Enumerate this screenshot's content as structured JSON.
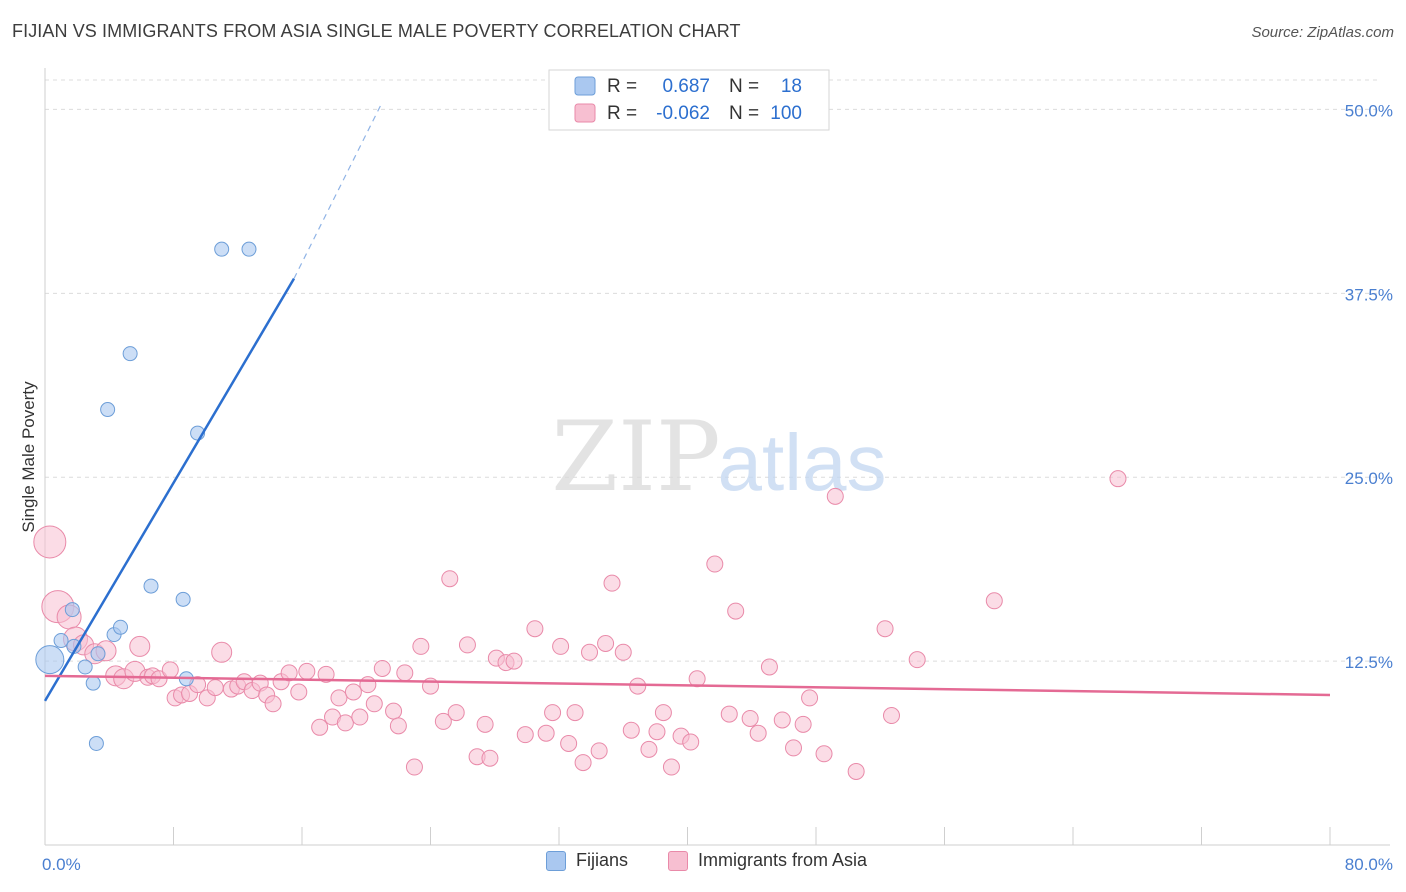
{
  "title": "FIJIAN VS IMMIGRANTS FROM ASIA SINGLE MALE POVERTY CORRELATION CHART",
  "source": "Source: ZipAtlas.com",
  "watermark": {
    "zip": "ZIP",
    "atlas": "atlas"
  },
  "chart_data": {
    "type": "scatter",
    "title": "FIJIAN VS IMMIGRANTS FROM ASIA SINGLE MALE POVERTY CORRELATION CHART",
    "xlabel": "",
    "ylabel": "Single Male Poverty",
    "xlim": [
      0,
      80
    ],
    "ylim": [
      0,
      52
    ],
    "x_tick_labels": [
      {
        "value": 0,
        "label": "0.0%"
      },
      {
        "value": 80,
        "label": "80.0%"
      }
    ],
    "x_minor_ticks": [
      0,
      8,
      16,
      24,
      32,
      40,
      48,
      56,
      64,
      72,
      80
    ],
    "y_ticks": [
      {
        "value": 12.5,
        "label": "12.5%"
      },
      {
        "value": 25.0,
        "label": "25.0%"
      },
      {
        "value": 37.5,
        "label": "37.5%"
      },
      {
        "value": 50.0,
        "label": "50.0%"
      }
    ],
    "grid": true,
    "legend_position": "top-center",
    "colors": {
      "fijians_fill": "#aac8f0",
      "fijians_stroke": "#6d9ed8",
      "fijians_line": "#2c6fcf",
      "asia_fill": "#f7bfd1",
      "asia_stroke": "#e98aa9",
      "asia_line": "#e46a94",
      "r_text": "#2c6fcf",
      "label_text": "#333333"
    },
    "stats": [
      {
        "name": "Fijians",
        "r_label": "R =",
        "r_value": "0.687",
        "n_label": "N =",
        "n_value": "18"
      },
      {
        "name": "Immigrants from Asia",
        "r_label": "R =",
        "r_value": "-0.062",
        "n_label": "N =",
        "n_value": "100"
      }
    ],
    "series": [
      {
        "name": "Fijians",
        "trend": {
          "x0": 0,
          "y0": 9.8,
          "x1": 15.5,
          "y1": 38.5,
          "dash_x1": 21.0,
          "dash_y1": 50.5
        },
        "points": [
          [
            0.3,
            12.6,
            14
          ],
          [
            1.0,
            13.9,
            7
          ],
          [
            1.7,
            16.0,
            7
          ],
          [
            1.8,
            13.5,
            7
          ],
          [
            2.5,
            12.1,
            7
          ],
          [
            3.0,
            11.0,
            7
          ],
          [
            3.2,
            6.9,
            7
          ],
          [
            3.3,
            13.0,
            7
          ],
          [
            4.3,
            14.3,
            7
          ],
          [
            4.7,
            14.8,
            7
          ],
          [
            3.9,
            29.6,
            7
          ],
          [
            5.3,
            33.4,
            7
          ],
          [
            6.6,
            17.6,
            7
          ],
          [
            8.6,
            16.7,
            7
          ],
          [
            9.5,
            28.0,
            7
          ],
          [
            8.8,
            11.3,
            7
          ],
          [
            11.0,
            40.5,
            7
          ],
          [
            12.7,
            40.5,
            7
          ]
        ]
      },
      {
        "name": "Immigrants from Asia",
        "trend": {
          "x0": 0,
          "y0": 11.5,
          "x1": 80,
          "y1": 10.2
        },
        "points": [
          [
            0.3,
            20.6,
            16
          ],
          [
            0.8,
            16.2,
            16
          ],
          [
            1.5,
            15.5,
            12
          ],
          [
            1.9,
            14.0,
            12
          ],
          [
            2.4,
            13.6,
            10
          ],
          [
            3.1,
            13.0,
            10
          ],
          [
            3.8,
            13.2,
            10
          ],
          [
            4.4,
            11.5,
            10
          ],
          [
            4.9,
            11.3,
            10
          ],
          [
            5.6,
            11.8,
            10
          ],
          [
            5.9,
            13.5,
            10
          ],
          [
            6.4,
            11.4,
            8
          ],
          [
            6.7,
            11.5,
            8
          ],
          [
            7.1,
            11.3,
            8
          ],
          [
            7.8,
            11.9,
            8
          ],
          [
            8.1,
            10.0,
            8
          ],
          [
            8.5,
            10.2,
            8
          ],
          [
            9.0,
            10.3,
            8
          ],
          [
            9.5,
            10.9,
            8
          ],
          [
            10.1,
            10.0,
            8
          ],
          [
            10.6,
            10.7,
            8
          ],
          [
            11.0,
            13.1,
            10
          ],
          [
            11.6,
            10.6,
            8
          ],
          [
            12.0,
            10.8,
            8
          ],
          [
            12.4,
            11.1,
            8
          ],
          [
            12.9,
            10.5,
            8
          ],
          [
            13.4,
            11.0,
            8
          ],
          [
            13.8,
            10.2,
            8
          ],
          [
            14.2,
            9.6,
            8
          ],
          [
            14.7,
            11.1,
            8
          ],
          [
            15.2,
            11.7,
            8
          ],
          [
            15.8,
            10.4,
            8
          ],
          [
            16.3,
            11.8,
            8
          ],
          [
            17.1,
            8.0,
            8
          ],
          [
            17.5,
            11.6,
            8
          ],
          [
            17.9,
            8.7,
            8
          ],
          [
            18.3,
            10.0,
            8
          ],
          [
            18.7,
            8.3,
            8
          ],
          [
            19.2,
            10.4,
            8
          ],
          [
            19.6,
            8.7,
            8
          ],
          [
            20.1,
            10.9,
            8
          ],
          [
            20.5,
            9.6,
            8
          ],
          [
            21.0,
            12.0,
            8
          ],
          [
            21.7,
            9.1,
            8
          ],
          [
            22.0,
            8.1,
            8
          ],
          [
            22.4,
            11.7,
            8
          ],
          [
            23.0,
            5.3,
            8
          ],
          [
            23.4,
            13.5,
            8
          ],
          [
            24.0,
            10.8,
            8
          ],
          [
            24.8,
            8.4,
            8
          ],
          [
            25.2,
            18.1,
            8
          ],
          [
            25.6,
            9.0,
            8
          ],
          [
            26.3,
            13.6,
            8
          ],
          [
            26.9,
            6.0,
            8
          ],
          [
            27.4,
            8.2,
            8
          ],
          [
            27.7,
            5.9,
            8
          ],
          [
            28.1,
            12.7,
            8
          ],
          [
            28.7,
            12.4,
            8
          ],
          [
            29.2,
            12.5,
            8
          ],
          [
            29.9,
            7.5,
            8
          ],
          [
            30.5,
            14.7,
            8
          ],
          [
            31.2,
            7.6,
            8
          ],
          [
            31.6,
            9.0,
            8
          ],
          [
            32.1,
            13.5,
            8
          ],
          [
            32.6,
            6.9,
            8
          ],
          [
            33.0,
            9.0,
            8
          ],
          [
            33.5,
            5.6,
            8
          ],
          [
            33.9,
            13.1,
            8
          ],
          [
            34.5,
            6.4,
            8
          ],
          [
            34.9,
            13.7,
            8
          ],
          [
            35.3,
            17.8,
            8
          ],
          [
            36.0,
            13.1,
            8
          ],
          [
            36.5,
            7.8,
            8
          ],
          [
            36.9,
            10.8,
            8
          ],
          [
            37.6,
            6.5,
            8
          ],
          [
            38.1,
            7.7,
            8
          ],
          [
            38.5,
            9.0,
            8
          ],
          [
            39.0,
            5.3,
            8
          ],
          [
            39.6,
            7.4,
            8
          ],
          [
            40.2,
            7.0,
            8
          ],
          [
            40.6,
            11.3,
            8
          ],
          [
            41.7,
            19.1,
            8
          ],
          [
            42.6,
            8.9,
            8
          ],
          [
            43.0,
            15.9,
            8
          ],
          [
            43.9,
            8.6,
            8
          ],
          [
            44.4,
            7.6,
            8
          ],
          [
            45.1,
            12.1,
            8
          ],
          [
            45.9,
            8.5,
            8
          ],
          [
            46.6,
            6.6,
            8
          ],
          [
            47.2,
            8.2,
            8
          ],
          [
            47.6,
            10.0,
            8
          ],
          [
            48.5,
            6.2,
            8
          ],
          [
            49.2,
            23.7,
            8
          ],
          [
            50.5,
            5.0,
            8
          ],
          [
            52.3,
            14.7,
            8
          ],
          [
            52.7,
            8.8,
            8
          ],
          [
            54.3,
            12.6,
            8
          ],
          [
            59.1,
            16.6,
            8
          ],
          [
            66.8,
            24.9,
            8
          ]
        ]
      }
    ]
  },
  "legend_bottom": [
    {
      "label": "Fijians",
      "fill": "#aac8f0",
      "stroke": "#6d9ed8"
    },
    {
      "label": "Immigrants from Asia",
      "fill": "#f7bfd1",
      "stroke": "#e98aa9"
    }
  ]
}
